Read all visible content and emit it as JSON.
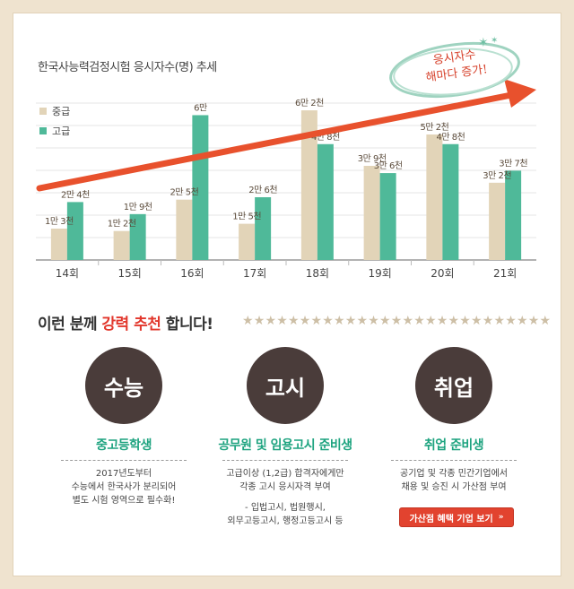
{
  "chart_data": {
    "type": "bar",
    "title": "한국사능력검정시험 응시자수(명) 추세",
    "categories": [
      "14회",
      "15회",
      "16회",
      "17회",
      "18회",
      "19회",
      "20회",
      "21회"
    ],
    "series": [
      {
        "name": "중급",
        "values": [
          13000,
          12000,
          25000,
          15000,
          62000,
          39000,
          52000,
          32000
        ],
        "labels": [
          "1만 3천",
          "1만 2천",
          "2만 5천",
          "1만 5천",
          "6만 2천",
          "3만 9천",
          "5만 2천",
          "3만 2천"
        ]
      },
      {
        "name": "고급",
        "values": [
          24000,
          19000,
          60000,
          26000,
          48000,
          36000,
          48000,
          37000
        ],
        "labels": [
          "2만 4천",
          "1만 9천",
          "6만",
          "2만 6천",
          "4만 8천",
          "3만 6천",
          "4만 8천",
          "3만 7천"
        ]
      }
    ],
    "ylim": [
      0,
      65000
    ],
    "legend": "top-left",
    "grid": true,
    "annotation": "응시자수 해마다 증가!",
    "colors": {
      "중급": "#e2d4b8",
      "고급": "#4fb999",
      "trend_arrow": "#e8512d"
    }
  },
  "recommend": {
    "prefix": "이런 분께 ",
    "highlight": "강력 추천",
    "suffix": " 합니다!",
    "stars": "★★★★★★★★★★★★★★★★★★★★★★★★★★★"
  },
  "columns": [
    {
      "circle": "수능",
      "title": "중고등학생",
      "desc": [
        "2017년도부터",
        "수능에서 한국사가 분리되어",
        "별도 시험 영역으로 필수화!"
      ]
    },
    {
      "circle": "고시",
      "title": "공무원 및 임용고시 준비생",
      "desc": [
        "고급이상 (1,2급) 합격자에게만",
        "각종 고시 응시자격 부여",
        "",
        "- 입법고시, 법원행시,",
        "외무고등고시, 행정고등고시 등"
      ]
    },
    {
      "circle": "취업",
      "title": "취업 준비생",
      "desc": [
        "공기업 및 각종 민간기업에서",
        "채용 및 승진 시 가산점 부여"
      ]
    }
  ],
  "button": {
    "label": "가산점 혜택 기업 보기",
    "arrow": "»"
  },
  "theme": {
    "accent_red": "#e2372c",
    "accent_green": "#1da37f",
    "circle_bg": "#4a3c3a",
    "page_bg": "#efe3cf"
  }
}
